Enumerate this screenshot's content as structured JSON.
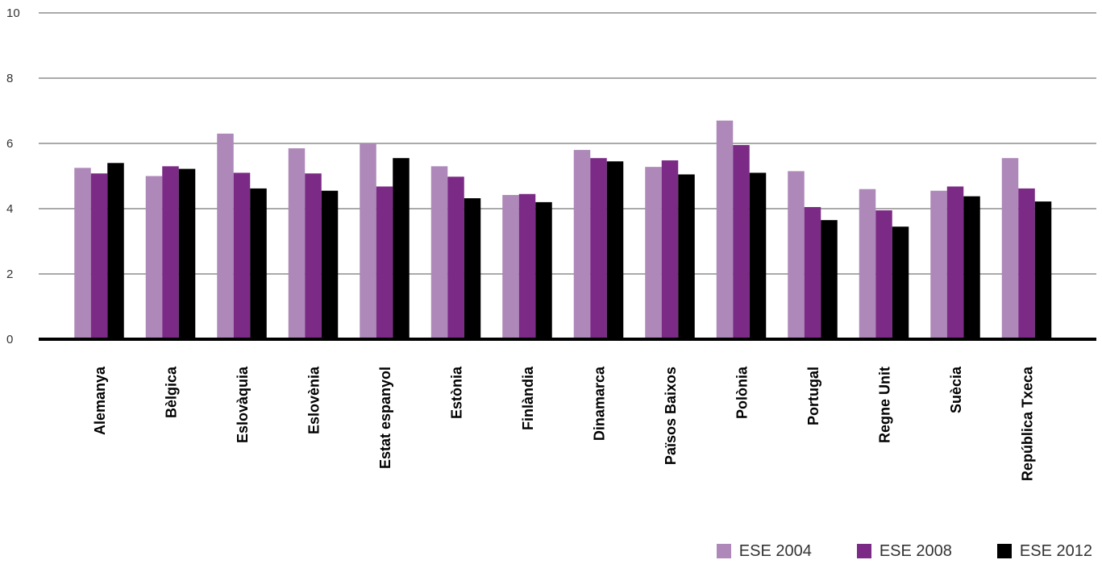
{
  "chart_data": {
    "type": "bar",
    "categories": [
      "Alemanya",
      "Bèlgica",
      "Eslovàquia",
      "Eslovènia",
      "Estat espanyol",
      "Estònia",
      "Finlàndia",
      "Dinamarca",
      "Països Baixos",
      "Polònia",
      "Portugal",
      "Regne Unit",
      "Suècia",
      "República Txeca"
    ],
    "series": [
      {
        "name": "ESE 2004",
        "color": "#ad88b9",
        "values": [
          5.25,
          5.0,
          6.3,
          5.85,
          6.0,
          5.3,
          4.42,
          5.8,
          5.28,
          6.7,
          5.15,
          4.6,
          4.55,
          5.55
        ]
      },
      {
        "name": "ESE 2008",
        "color": "#7b2b86",
        "values": [
          5.08,
          5.3,
          5.1,
          5.08,
          4.68,
          4.98,
          4.45,
          5.55,
          5.48,
          5.95,
          4.05,
          3.95,
          4.68,
          4.62
        ]
      },
      {
        "name": "ESE 2012",
        "color": "#000000",
        "values": [
          5.4,
          5.22,
          4.62,
          4.55,
          5.55,
          4.32,
          4.2,
          5.45,
          5.05,
          5.1,
          3.65,
          3.45,
          4.38,
          4.22
        ]
      }
    ],
    "yticks": [
      "0",
      "2",
      "4",
      "6",
      "8",
      "10"
    ],
    "ylim": [
      0,
      10
    ],
    "grid": true,
    "legend_position": "bottom-right"
  }
}
